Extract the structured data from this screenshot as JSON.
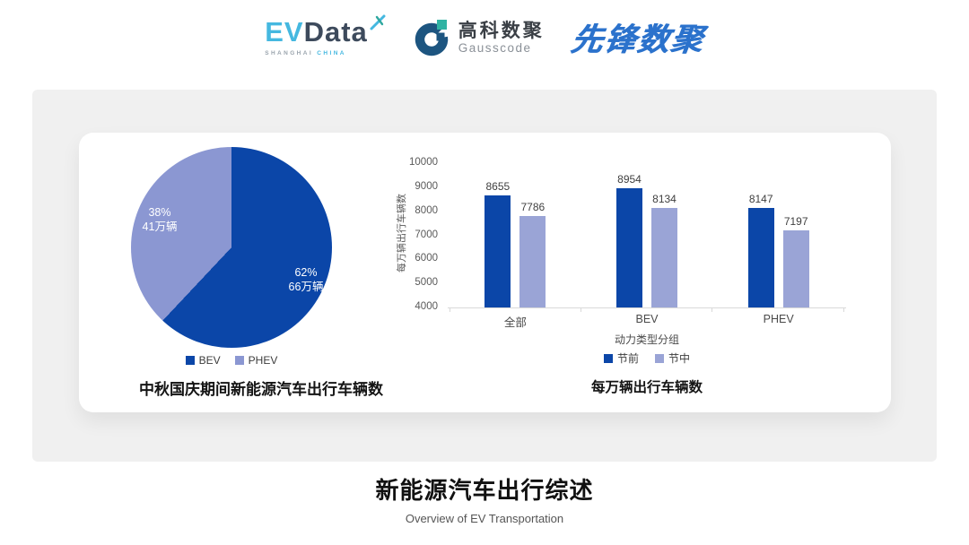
{
  "header": {
    "evdata_logo": {
      "part1": "EV",
      "part2": "Data",
      "subtext1": "SHANGHAI",
      "subtext2": "CHINA"
    },
    "gausscode_logo": {
      "name_cn": "高科数聚",
      "name_en": "Gausscode"
    },
    "pioneer_logo": {
      "text": "先锋数聚"
    }
  },
  "chart_data": [
    {
      "type": "pie",
      "title": "中秋国庆期间新能源汽车出行车辆数",
      "legend_position": "bottom",
      "segments": [
        {
          "label": "BEV",
          "pct": 62,
          "pct_label": "62%",
          "amount_label": "66万辆",
          "color": "#0b46a8"
        },
        {
          "label": "PHEV",
          "pct": 38,
          "pct_label": "38%",
          "amount_label": "41万辆",
          "color": "#8b97d2"
        }
      ]
    },
    {
      "type": "bar",
      "title": "每万辆出行车辆数",
      "xlabel": "动力类型分组",
      "ylabel": "每万辆出行车辆数",
      "ylim": [
        4000,
        10000
      ],
      "yticks": [
        4000,
        5000,
        6000,
        7000,
        8000,
        9000,
        10000
      ],
      "categories": [
        "全部",
        "BEV",
        "PHEV"
      ],
      "series": [
        {
          "name": "节前",
          "color": "#0b46a8",
          "values": [
            8655,
            8954,
            8147
          ]
        },
        {
          "name": "节中",
          "color": "#9aa4d6",
          "values": [
            7786,
            8134,
            7197
          ]
        }
      ],
      "grid": false,
      "legend_position": "bottom"
    }
  ],
  "footer": {
    "title": "新能源汽车出行综述",
    "subtitle": "Overview of EV Transportation"
  }
}
